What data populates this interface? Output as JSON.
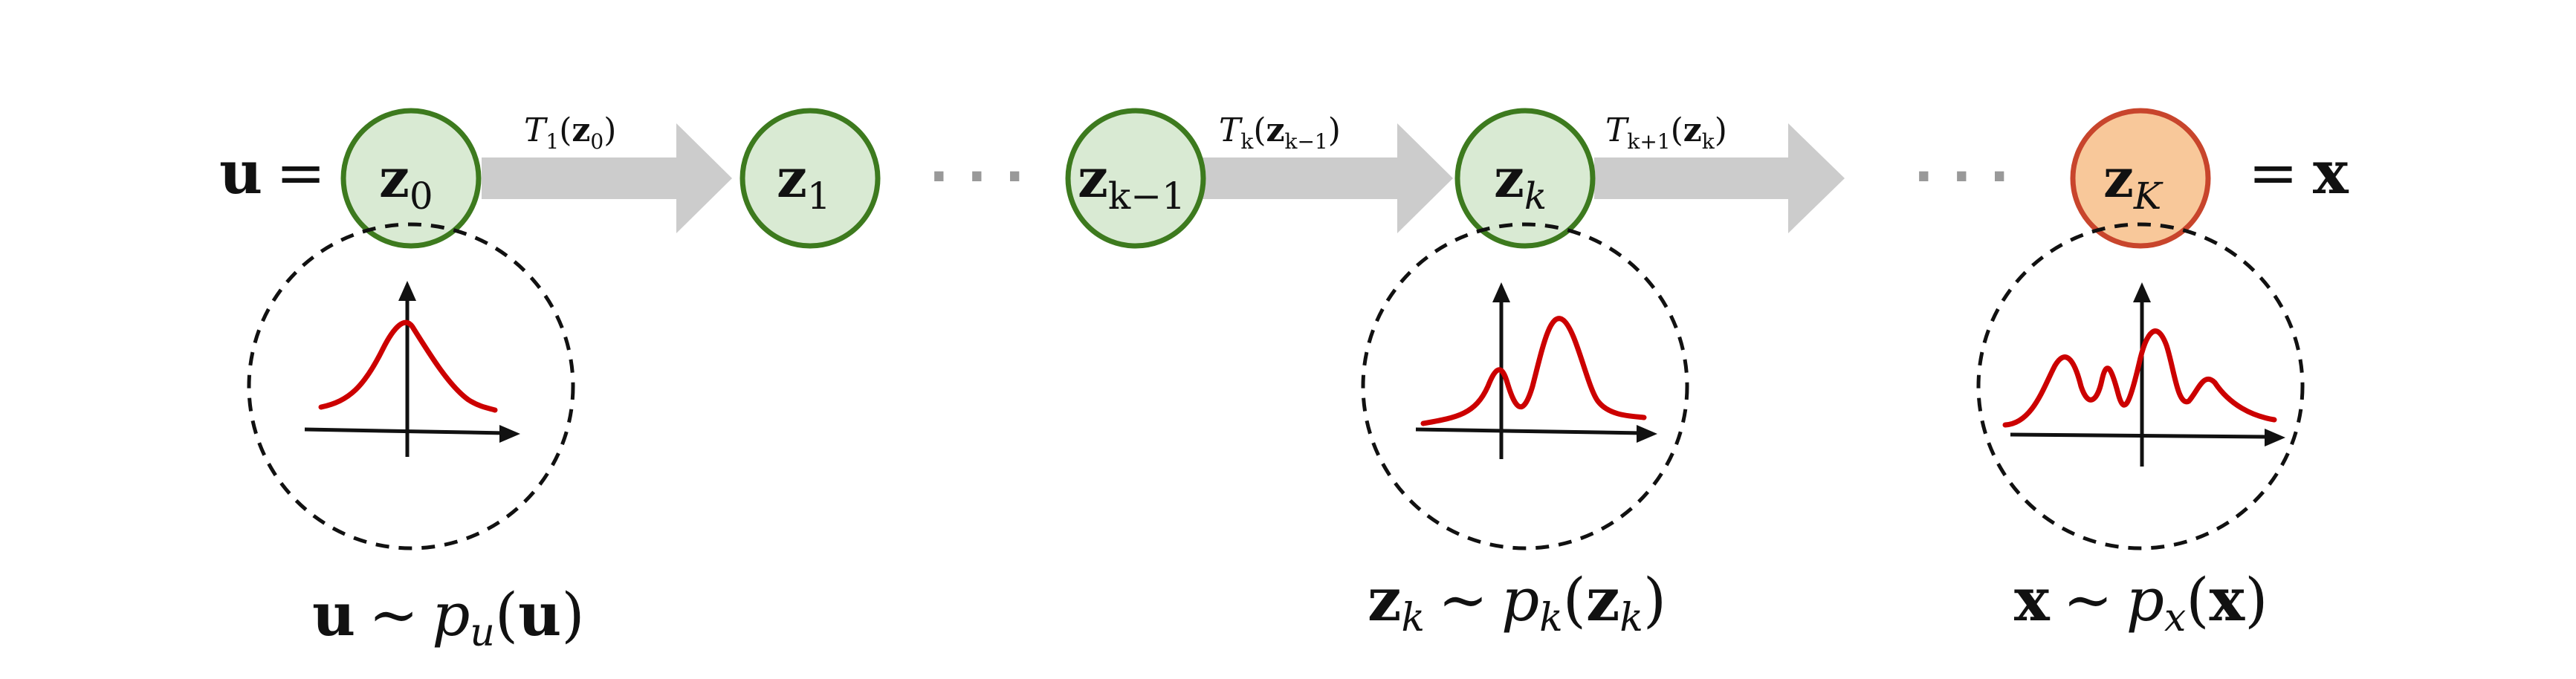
{
  "colors": {
    "node_fill": "#d9ead3",
    "node_stroke": "#3d7a1e",
    "final_fill": "#f8c89a",
    "final_stroke": "#c8452c",
    "arrow": "#cccccc",
    "density_curve": "#cc0000",
    "dots": "#999999"
  },
  "left_eq": {
    "var": "u",
    "eq": "="
  },
  "right_eq": {
    "eq": "=",
    "var": "x"
  },
  "nodes": [
    {
      "base": "z",
      "sub": "0"
    },
    {
      "base": "z",
      "sub": "1"
    },
    {
      "base": "z",
      "sub": "k−1"
    },
    {
      "base": "z",
      "sub": "k"
    },
    {
      "base": "z",
      "sub": "K"
    }
  ],
  "ellipsis": "· · ·",
  "transforms": [
    {
      "T": "T",
      "Tsub": "1",
      "arg": "z",
      "argsub": "0"
    },
    {
      "T": "T",
      "Tsub": "k",
      "arg": "z",
      "argsub": "k−1"
    },
    {
      "T": "T",
      "Tsub": "k+1",
      "arg": "z",
      "argsub": "k"
    }
  ],
  "distributions": [
    {
      "var": "u",
      "varsub": "",
      "sim": "∼",
      "p": "p",
      "psub": "u",
      "arg": "u",
      "argsub": ""
    },
    {
      "var": "z",
      "varsub": "k",
      "sim": "∼",
      "p": "p",
      "psub": "k",
      "arg": "z",
      "argsub": "k"
    },
    {
      "var": "x",
      "varsub": "",
      "sim": "∼",
      "p": "p",
      "psub": "x",
      "arg": "x",
      "argsub": ""
    }
  ]
}
